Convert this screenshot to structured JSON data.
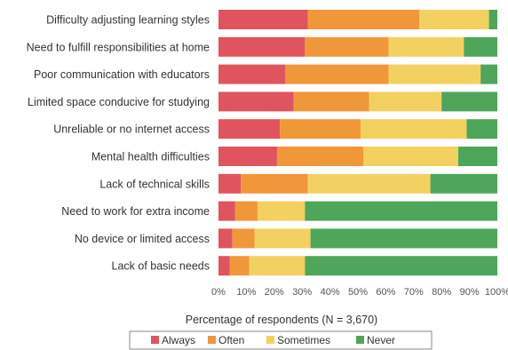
{
  "chart_data": {
    "type": "bar",
    "orientation": "horizontal",
    "stacked": true,
    "xlabel": "Percentage of respondents (N = 3,670)",
    "xlim": [
      0,
      100
    ],
    "xticks": [
      "0%",
      "10%",
      "20%",
      "30%",
      "40%",
      "50%",
      "60%",
      "70%",
      "80%",
      "90%",
      "100%"
    ],
    "grid": false,
    "legend_position": "bottom",
    "categories": [
      "Difficulty adjusting learning styles",
      "Need to fulfill responsibilities at home",
      "Poor communication with educators",
      "Limited space conducive for studying",
      "Unreliable or no internet access",
      "Mental health difficulties",
      "Lack of technical skills",
      "Need to work for extra income",
      "No device or limited access",
      "Lack of basic needs"
    ],
    "series": [
      {
        "name": "Always",
        "color": "#e0545f",
        "values": [
          32,
          31,
          24,
          27,
          22,
          21,
          8,
          6,
          5,
          4
        ]
      },
      {
        "name": "Often",
        "color": "#f0973a",
        "values": [
          40,
          30,
          37,
          27,
          29,
          31,
          24,
          8,
          8,
          7
        ]
      },
      {
        "name": "Sometimes",
        "color": "#f3d160",
        "values": [
          25,
          27,
          33,
          26,
          38,
          34,
          44,
          17,
          20,
          20
        ]
      },
      {
        "name": "Never",
        "color": "#4ea65a",
        "values": [
          3,
          12,
          6,
          20,
          11,
          14,
          24,
          69,
          67,
          69
        ]
      }
    ]
  }
}
